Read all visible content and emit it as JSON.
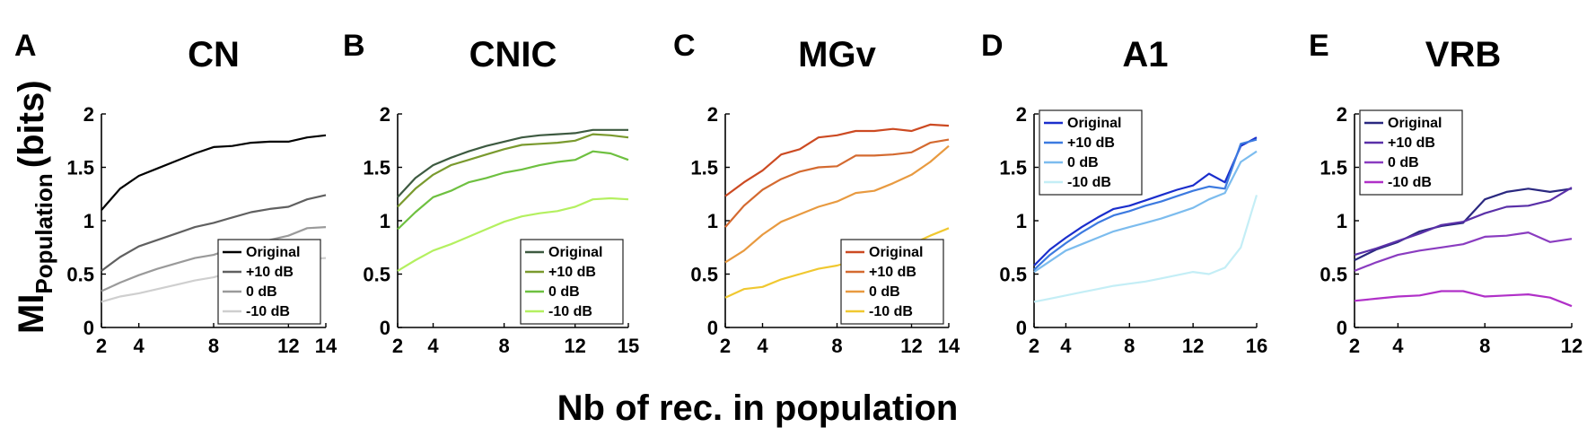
{
  "figure": {
    "xlabel": "Nb of rec. in population",
    "ylabel_main": "MI",
    "ylabel_sub": "Population",
    "ylabel_unit": "(bits)"
  },
  "chart_data": [
    {
      "type": "line",
      "letter": "A",
      "title": "CN",
      "xlim": [
        2,
        14
      ],
      "ylim": [
        0,
        2
      ],
      "xticks": [
        2,
        4,
        8,
        12,
        14
      ],
      "yticks": [
        0,
        0.5,
        1,
        1.5,
        2
      ],
      "legend_position": "bottom-right",
      "x": [
        2,
        3,
        4,
        5,
        6,
        7,
        8,
        9,
        10,
        11,
        12,
        13,
        14
      ],
      "series": [
        {
          "name": "Original",
          "color": "#000000",
          "values": [
            1.1,
            1.3,
            1.42,
            1.49,
            1.56,
            1.63,
            1.69,
            1.7,
            1.73,
            1.74,
            1.74,
            1.78,
            1.8
          ]
        },
        {
          "name": "+10 dB",
          "color": "#606060",
          "values": [
            0.53,
            0.66,
            0.76,
            0.82,
            0.88,
            0.94,
            0.98,
            1.03,
            1.08,
            1.11,
            1.13,
            1.2,
            1.24
          ]
        },
        {
          "name": "0 dB",
          "color": "#9a9a9a",
          "values": [
            0.34,
            0.42,
            0.49,
            0.55,
            0.6,
            0.65,
            0.68,
            0.74,
            0.78,
            0.82,
            0.86,
            0.93,
            0.94
          ]
        },
        {
          "name": "-10 dB",
          "color": "#cfcfcf",
          "values": [
            0.24,
            0.29,
            0.32,
            0.36,
            0.4,
            0.44,
            0.47,
            0.52,
            0.56,
            0.6,
            0.63,
            0.64,
            0.65
          ]
        }
      ]
    },
    {
      "type": "line",
      "letter": "B",
      "title": "CNIC",
      "xlim": [
        2,
        15
      ],
      "ylim": [
        0,
        2
      ],
      "xticks": [
        2,
        4,
        8,
        12,
        15
      ],
      "yticks": [
        0,
        0.5,
        1,
        1.5,
        2
      ],
      "legend_position": "bottom-right",
      "x": [
        2,
        3,
        4,
        5,
        6,
        7,
        8,
        9,
        10,
        11,
        12,
        13,
        14,
        15
      ],
      "series": [
        {
          "name": "Original",
          "color": "#3d5a40",
          "values": [
            1.22,
            1.4,
            1.52,
            1.59,
            1.65,
            1.7,
            1.74,
            1.78,
            1.8,
            1.81,
            1.82,
            1.85,
            1.85,
            1.85
          ]
        },
        {
          "name": "+10 dB",
          "color": "#7a9a2e",
          "values": [
            1.13,
            1.3,
            1.43,
            1.52,
            1.57,
            1.62,
            1.67,
            1.71,
            1.72,
            1.73,
            1.75,
            1.81,
            1.8,
            1.78
          ]
        },
        {
          "name": "0 dB",
          "color": "#6ec040",
          "values": [
            0.92,
            1.08,
            1.22,
            1.28,
            1.36,
            1.4,
            1.45,
            1.48,
            1.52,
            1.55,
            1.57,
            1.65,
            1.63,
            1.57
          ]
        },
        {
          "name": "-10 dB",
          "color": "#b4f060",
          "values": [
            0.53,
            0.63,
            0.72,
            0.78,
            0.85,
            0.92,
            0.99,
            1.04,
            1.07,
            1.09,
            1.13,
            1.2,
            1.21,
            1.2
          ]
        }
      ]
    },
    {
      "type": "line",
      "letter": "C",
      "title": "MGv",
      "xlim": [
        2,
        14
      ],
      "ylim": [
        0,
        2
      ],
      "xticks": [
        2,
        4,
        8,
        12,
        14
      ],
      "yticks": [
        0,
        0.5,
        1,
        1.5,
        2
      ],
      "legend_position": "bottom-right",
      "x": [
        2,
        3,
        4,
        5,
        6,
        7,
        8,
        9,
        10,
        11,
        12,
        13,
        14
      ],
      "series": [
        {
          "name": "Original",
          "color": "#cc4a22",
          "values": [
            1.23,
            1.36,
            1.47,
            1.62,
            1.67,
            1.78,
            1.8,
            1.84,
            1.84,
            1.86,
            1.84,
            1.9,
            1.89
          ]
        },
        {
          "name": "+10 dB",
          "color": "#d46a30",
          "values": [
            0.94,
            1.14,
            1.29,
            1.39,
            1.46,
            1.5,
            1.51,
            1.61,
            1.61,
            1.62,
            1.64,
            1.73,
            1.76
          ]
        },
        {
          "name": "0 dB",
          "color": "#e89a40",
          "values": [
            0.61,
            0.72,
            0.87,
            0.99,
            1.06,
            1.13,
            1.18,
            1.26,
            1.28,
            1.35,
            1.43,
            1.55,
            1.7
          ]
        },
        {
          "name": "-10 dB",
          "color": "#f0c830",
          "values": [
            0.28,
            0.36,
            0.38,
            0.45,
            0.5,
            0.55,
            0.58,
            0.63,
            0.67,
            0.72,
            0.78,
            0.86,
            0.93
          ]
        }
      ]
    },
    {
      "type": "line",
      "letter": "D",
      "title": "A1",
      "xlim": [
        2,
        16
      ],
      "ylim": [
        0,
        2
      ],
      "xticks": [
        2,
        4,
        8,
        12,
        16
      ],
      "yticks": [
        0,
        0.5,
        1,
        1.5,
        2
      ],
      "legend_position": "top-left",
      "x": [
        2,
        3,
        4,
        5,
        6,
        7,
        8,
        9,
        10,
        11,
        12,
        13,
        14,
        15,
        16
      ],
      "series": [
        {
          "name": "Original",
          "color": "#1a2ecc",
          "values": [
            0.58,
            0.73,
            0.84,
            0.94,
            1.03,
            1.11,
            1.14,
            1.19,
            1.24,
            1.29,
            1.33,
            1.44,
            1.36,
            1.7,
            1.78
          ]
        },
        {
          "name": "+10 dB",
          "color": "#3c7ae0",
          "values": [
            0.54,
            0.68,
            0.79,
            0.89,
            0.98,
            1.05,
            1.09,
            1.14,
            1.18,
            1.23,
            1.28,
            1.32,
            1.3,
            1.72,
            1.76
          ]
        },
        {
          "name": "0 dB",
          "color": "#7cbcee",
          "values": [
            0.52,
            0.62,
            0.72,
            0.78,
            0.84,
            0.9,
            0.94,
            0.98,
            1.02,
            1.07,
            1.12,
            1.2,
            1.26,
            1.55,
            1.65
          ]
        },
        {
          "name": "-10 dB",
          "color": "#c4eef6",
          "values": [
            0.24,
            0.27,
            0.3,
            0.33,
            0.36,
            0.39,
            0.41,
            0.43,
            0.46,
            0.49,
            0.52,
            0.5,
            0.56,
            0.75,
            1.24
          ]
        }
      ]
    },
    {
      "type": "line",
      "letter": "E",
      "title": "VRB",
      "xlim": [
        2,
        12
      ],
      "ylim": [
        0,
        2
      ],
      "xticks": [
        2,
        4,
        8,
        12
      ],
      "yticks": [
        0,
        0.5,
        1,
        1.5,
        2
      ],
      "legend_position": "top-left",
      "x": [
        2,
        3,
        4,
        5,
        6,
        7,
        8,
        9,
        10,
        11,
        12
      ],
      "series": [
        {
          "name": "Original",
          "color": "#2a2880",
          "values": [
            0.63,
            0.73,
            0.8,
            0.9,
            0.95,
            0.98,
            1.2,
            1.27,
            1.3,
            1.27,
            1.3
          ]
        },
        {
          "name": "+10 dB",
          "color": "#5a30a8",
          "values": [
            0.68,
            0.74,
            0.81,
            0.88,
            0.96,
            0.99,
            1.07,
            1.13,
            1.14,
            1.19,
            1.31
          ]
        },
        {
          "name": "0 dB",
          "color": "#8a3cc0",
          "values": [
            0.53,
            0.61,
            0.68,
            0.72,
            0.75,
            0.78,
            0.85,
            0.86,
            0.89,
            0.8,
            0.83
          ]
        },
        {
          "name": "-10 dB",
          "color": "#b030c8",
          "values": [
            0.25,
            0.27,
            0.29,
            0.3,
            0.34,
            0.34,
            0.29,
            0.3,
            0.31,
            0.28,
            0.2
          ]
        }
      ]
    }
  ]
}
